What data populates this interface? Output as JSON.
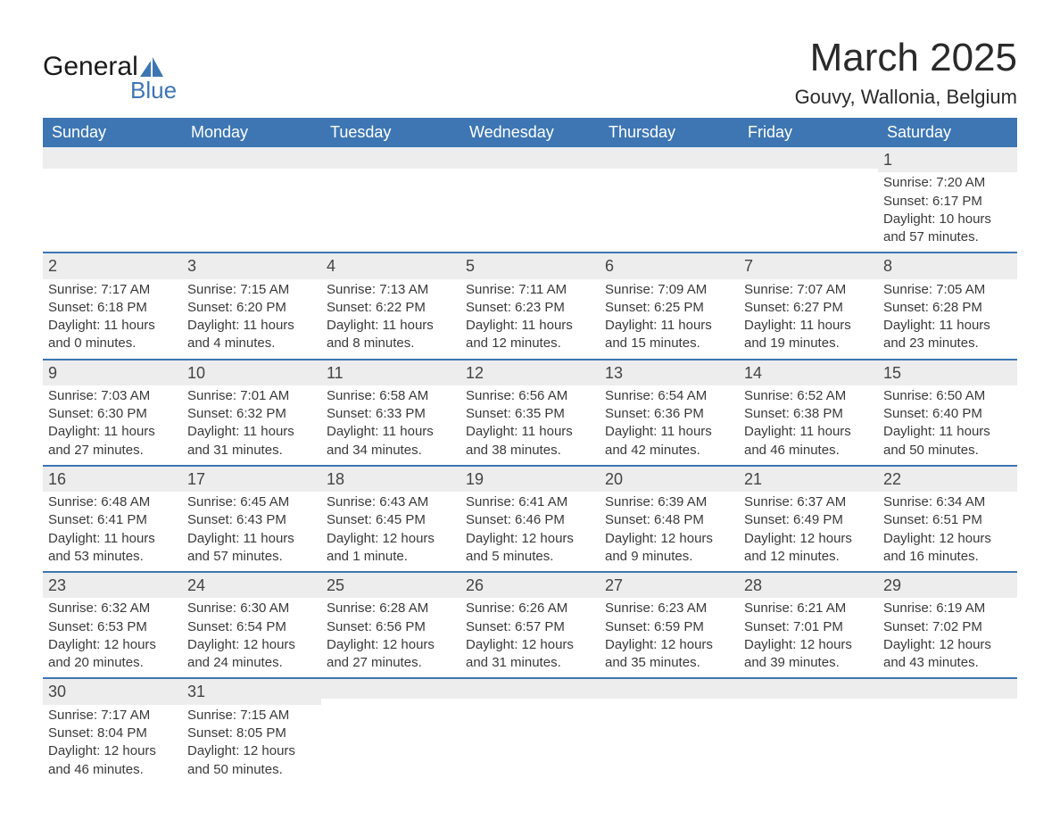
{
  "logo": {
    "line1": "General",
    "line2": "Blue",
    "sail_color": "#3d76b3"
  },
  "header": {
    "title": "March 2025",
    "location": "Gouvy, Wallonia, Belgium"
  },
  "colors": {
    "header_bg": "#3d76b3",
    "header_text": "#ffffff",
    "daynum_bg": "#ededed",
    "border": "#3d76b3",
    "text": "#3a3a3a",
    "background": "#ffffff"
  },
  "calendar": {
    "type": "table",
    "columns": [
      "Sunday",
      "Monday",
      "Tuesday",
      "Wednesday",
      "Thursday",
      "Friday",
      "Saturday"
    ],
    "weeks": [
      [
        null,
        null,
        null,
        null,
        null,
        null,
        {
          "n": "1",
          "sr": "7:20 AM",
          "ss": "6:17 PM",
          "dl": "10 hours and 57 minutes."
        }
      ],
      [
        {
          "n": "2",
          "sr": "7:17 AM",
          "ss": "6:18 PM",
          "dl": "11 hours and 0 minutes."
        },
        {
          "n": "3",
          "sr": "7:15 AM",
          "ss": "6:20 PM",
          "dl": "11 hours and 4 minutes."
        },
        {
          "n": "4",
          "sr": "7:13 AM",
          "ss": "6:22 PM",
          "dl": "11 hours and 8 minutes."
        },
        {
          "n": "5",
          "sr": "7:11 AM",
          "ss": "6:23 PM",
          "dl": "11 hours and 12 minutes."
        },
        {
          "n": "6",
          "sr": "7:09 AM",
          "ss": "6:25 PM",
          "dl": "11 hours and 15 minutes."
        },
        {
          "n": "7",
          "sr": "7:07 AM",
          "ss": "6:27 PM",
          "dl": "11 hours and 19 minutes."
        },
        {
          "n": "8",
          "sr": "7:05 AM",
          "ss": "6:28 PM",
          "dl": "11 hours and 23 minutes."
        }
      ],
      [
        {
          "n": "9",
          "sr": "7:03 AM",
          "ss": "6:30 PM",
          "dl": "11 hours and 27 minutes."
        },
        {
          "n": "10",
          "sr": "7:01 AM",
          "ss": "6:32 PM",
          "dl": "11 hours and 31 minutes."
        },
        {
          "n": "11",
          "sr": "6:58 AM",
          "ss": "6:33 PM",
          "dl": "11 hours and 34 minutes."
        },
        {
          "n": "12",
          "sr": "6:56 AM",
          "ss": "6:35 PM",
          "dl": "11 hours and 38 minutes."
        },
        {
          "n": "13",
          "sr": "6:54 AM",
          "ss": "6:36 PM",
          "dl": "11 hours and 42 minutes."
        },
        {
          "n": "14",
          "sr": "6:52 AM",
          "ss": "6:38 PM",
          "dl": "11 hours and 46 minutes."
        },
        {
          "n": "15",
          "sr": "6:50 AM",
          "ss": "6:40 PM",
          "dl": "11 hours and 50 minutes."
        }
      ],
      [
        {
          "n": "16",
          "sr": "6:48 AM",
          "ss": "6:41 PM",
          "dl": "11 hours and 53 minutes."
        },
        {
          "n": "17",
          "sr": "6:45 AM",
          "ss": "6:43 PM",
          "dl": "11 hours and 57 minutes."
        },
        {
          "n": "18",
          "sr": "6:43 AM",
          "ss": "6:45 PM",
          "dl": "12 hours and 1 minute."
        },
        {
          "n": "19",
          "sr": "6:41 AM",
          "ss": "6:46 PM",
          "dl": "12 hours and 5 minutes."
        },
        {
          "n": "20",
          "sr": "6:39 AM",
          "ss": "6:48 PM",
          "dl": "12 hours and 9 minutes."
        },
        {
          "n": "21",
          "sr": "6:37 AM",
          "ss": "6:49 PM",
          "dl": "12 hours and 12 minutes."
        },
        {
          "n": "22",
          "sr": "6:34 AM",
          "ss": "6:51 PM",
          "dl": "12 hours and 16 minutes."
        }
      ],
      [
        {
          "n": "23",
          "sr": "6:32 AM",
          "ss": "6:53 PM",
          "dl": "12 hours and 20 minutes."
        },
        {
          "n": "24",
          "sr": "6:30 AM",
          "ss": "6:54 PM",
          "dl": "12 hours and 24 minutes."
        },
        {
          "n": "25",
          "sr": "6:28 AM",
          "ss": "6:56 PM",
          "dl": "12 hours and 27 minutes."
        },
        {
          "n": "26",
          "sr": "6:26 AM",
          "ss": "6:57 PM",
          "dl": "12 hours and 31 minutes."
        },
        {
          "n": "27",
          "sr": "6:23 AM",
          "ss": "6:59 PM",
          "dl": "12 hours and 35 minutes."
        },
        {
          "n": "28",
          "sr": "6:21 AM",
          "ss": "7:01 PM",
          "dl": "12 hours and 39 minutes."
        },
        {
          "n": "29",
          "sr": "6:19 AM",
          "ss": "7:02 PM",
          "dl": "12 hours and 43 minutes."
        }
      ],
      [
        {
          "n": "30",
          "sr": "7:17 AM",
          "ss": "8:04 PM",
          "dl": "12 hours and 46 minutes."
        },
        {
          "n": "31",
          "sr": "7:15 AM",
          "ss": "8:05 PM",
          "dl": "12 hours and 50 minutes."
        },
        null,
        null,
        null,
        null,
        null
      ]
    ],
    "labels": {
      "sunrise": "Sunrise: ",
      "sunset": "Sunset: ",
      "daylight": "Daylight: "
    }
  }
}
